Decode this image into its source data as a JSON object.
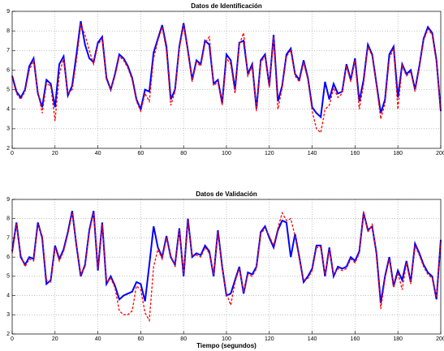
{
  "chart_data": [
    {
      "type": "line",
      "title": "Datos de Identificación",
      "x": [
        0,
        2,
        4,
        6,
        8,
        10,
        12,
        14,
        16,
        18,
        20,
        22,
        24,
        26,
        28,
        30,
        32,
        34,
        36,
        38,
        40,
        42,
        44,
        46,
        48,
        50,
        52,
        54,
        56,
        58,
        60,
        62,
        64,
        66,
        68,
        70,
        72,
        74,
        76,
        78,
        80,
        82,
        84,
        86,
        88,
        90,
        92,
        94,
        96,
        98,
        100,
        102,
        104,
        106,
        108,
        110,
        112,
        114,
        116,
        118,
        120,
        122,
        124,
        126,
        128,
        130,
        132,
        134,
        136,
        138,
        140,
        142,
        144,
        146,
        148,
        150,
        152,
        154,
        156,
        158,
        160,
        162,
        164,
        166,
        168,
        170,
        172,
        174,
        176,
        178,
        180,
        182,
        184,
        186,
        188,
        190,
        192,
        194,
        196,
        198,
        200
      ],
      "series": [
        {
          "color": "#0000ff",
          "style": "solid",
          "values": [
            5.7,
            4.9,
            4.6,
            5.0,
            6.2,
            6.6,
            4.8,
            4.1,
            5.5,
            5.3,
            4.1,
            6.3,
            6.7,
            4.7,
            5.2,
            6.8,
            8.5,
            7.3,
            6.6,
            6.4,
            7.4,
            7.7,
            5.6,
            5.0,
            5.8,
            6.8,
            6.6,
            6.2,
            5.6,
            4.5,
            4.0,
            5.0,
            4.9,
            6.9,
            7.6,
            8.3,
            7.2,
            4.5,
            5.0,
            7.2,
            8.4,
            7.0,
            5.5,
            6.5,
            6.3,
            7.5,
            7.3,
            5.3,
            5.5,
            4.3,
            6.8,
            6.5,
            5.0,
            7.4,
            7.5,
            5.8,
            6.3,
            4.0,
            6.5,
            6.8,
            5.2,
            7.8,
            4.4,
            5.2,
            6.8,
            7.1,
            5.8,
            5.5,
            6.5,
            5.6,
            4.1,
            3.8,
            3.6,
            5.4,
            4.5,
            5.3,
            4.8,
            4.9,
            6.3,
            5.5,
            6.6,
            4.4,
            5.5,
            7.3,
            6.8,
            5.3,
            3.8,
            4.5,
            6.8,
            7.2,
            4.6,
            6.3,
            5.8,
            6.0,
            5.0,
            6.2,
            7.6,
            8.2,
            7.9,
            6.5,
            3.9
          ]
        },
        {
          "color": "#ff0000",
          "style": "dashed",
          "values": [
            5.6,
            4.8,
            4.5,
            4.9,
            6.0,
            6.5,
            4.9,
            3.8,
            5.3,
            5.2,
            3.4,
            5.8,
            6.6,
            4.8,
            5.0,
            6.5,
            8.3,
            7.8,
            7.0,
            6.3,
            7.3,
            7.6,
            5.5,
            5.0,
            5.7,
            6.7,
            6.5,
            6.1,
            5.5,
            4.4,
            3.9,
            4.8,
            4.4,
            6.6,
            7.5,
            8.2,
            7.0,
            4.2,
            4.9,
            7.1,
            8.3,
            6.9,
            5.4,
            6.4,
            6.2,
            7.4,
            7.7,
            5.2,
            5.4,
            4.2,
            6.6,
            6.3,
            4.8,
            7.3,
            7.9,
            5.7,
            6.2,
            3.9,
            6.4,
            6.7,
            5.1,
            7.7,
            4.0,
            5.1,
            6.7,
            7.0,
            5.7,
            5.4,
            6.4,
            5.5,
            3.9,
            3.0,
            2.8,
            4.0,
            4.2,
            5.1,
            4.6,
            4.8,
            6.2,
            5.4,
            6.5,
            4.0,
            5.3,
            7.2,
            6.7,
            5.2,
            3.5,
            4.3,
            6.6,
            7.1,
            4.0,
            6.2,
            5.7,
            5.9,
            4.9,
            6.1,
            7.5,
            8.1,
            7.8,
            6.4,
            3.9
          ]
        }
      ],
      "xlim": [
        0,
        200
      ],
      "ylim": [
        2,
        9
      ],
      "xticks": [
        0,
        20,
        40,
        60,
        80,
        100,
        120,
        140,
        160,
        180,
        200
      ],
      "yticks": [
        2,
        3,
        4,
        5,
        6,
        7,
        8,
        9
      ],
      "grid": true
    },
    {
      "type": "line",
      "title": "Datos de Validación",
      "xlabel": "Tiempo (segundos)",
      "x": [
        0,
        2,
        4,
        6,
        8,
        10,
        12,
        14,
        16,
        18,
        20,
        22,
        24,
        26,
        28,
        30,
        32,
        34,
        36,
        38,
        40,
        42,
        44,
        46,
        48,
        50,
        52,
        54,
        56,
        58,
        60,
        62,
        64,
        66,
        68,
        70,
        72,
        74,
        76,
        78,
        80,
        82,
        84,
        86,
        88,
        90,
        92,
        94,
        96,
        98,
        100,
        102,
        104,
        106,
        108,
        110,
        112,
        114,
        116,
        118,
        120,
        122,
        124,
        126,
        128,
        130,
        132,
        134,
        136,
        138,
        140,
        142,
        144,
        146,
        148,
        150,
        152,
        154,
        156,
        158,
        160,
        162,
        164,
        166,
        168,
        170,
        172,
        174,
        176,
        178,
        180,
        182,
        184,
        186,
        188,
        190,
        192,
        194,
        196,
        198,
        200
      ],
      "series": [
        {
          "color": "#0000ff",
          "style": "solid",
          "values": [
            6.3,
            7.8,
            6.0,
            5.6,
            6.0,
            5.9,
            7.8,
            7.0,
            4.6,
            4.8,
            6.6,
            5.9,
            6.4,
            7.3,
            8.4,
            6.6,
            5.0,
            5.6,
            7.4,
            8.4,
            5.3,
            7.8,
            4.6,
            5.0,
            4.5,
            3.8,
            4.0,
            4.1,
            4.2,
            4.7,
            4.6,
            3.7,
            5.6,
            7.6,
            6.5,
            6.0,
            7.1,
            6.0,
            5.6,
            7.5,
            5.0,
            8.0,
            6.0,
            6.2,
            6.1,
            6.6,
            6.3,
            5.0,
            7.4,
            5.5,
            4.0,
            4.1,
            4.8,
            5.5,
            4.1,
            5.2,
            5.1,
            5.5,
            7.3,
            7.6,
            7.0,
            6.5,
            7.4,
            7.9,
            7.8,
            6.0,
            7.2,
            6.0,
            4.7,
            5.0,
            5.4,
            6.6,
            6.6,
            5.0,
            6.5,
            5.0,
            5.5,
            5.4,
            5.5,
            6.0,
            5.8,
            6.3,
            8.3,
            7.4,
            7.6,
            6.2,
            3.6,
            5.0,
            6.0,
            4.5,
            5.3,
            4.8,
            5.8,
            4.7,
            6.7,
            6.2,
            5.6,
            5.2,
            5.0,
            3.8,
            6.9
          ]
        },
        {
          "color": "#ff0000",
          "style": "dashed",
          "values": [
            6.2,
            7.7,
            6.1,
            5.5,
            5.9,
            5.8,
            7.7,
            7.1,
            4.8,
            4.7,
            6.5,
            5.8,
            6.3,
            7.2,
            8.3,
            6.7,
            5.1,
            5.5,
            7.3,
            8.3,
            5.4,
            7.7,
            4.7,
            4.9,
            4.4,
            3.2,
            3.0,
            3.0,
            3.2,
            4.5,
            4.3,
            3.1,
            2.7,
            5.5,
            6.4,
            5.9,
            7.0,
            6.1,
            5.5,
            7.4,
            5.1,
            7.9,
            6.1,
            6.1,
            6.0,
            6.5,
            6.2,
            5.1,
            7.3,
            5.4,
            4.1,
            3.5,
            4.7,
            5.4,
            4.2,
            5.1,
            5.0,
            5.4,
            7.2,
            7.5,
            7.1,
            6.6,
            7.5,
            8.3,
            7.9,
            8.0,
            7.1,
            5.9,
            4.8,
            4.9,
            5.3,
            6.5,
            6.5,
            5.1,
            6.4,
            5.1,
            5.4,
            5.3,
            5.4,
            5.9,
            5.7,
            6.2,
            8.4,
            7.3,
            7.7,
            6.1,
            3.3,
            4.9,
            5.9,
            4.4,
            5.2,
            4.3,
            5.7,
            4.6,
            6.6,
            6.1,
            5.5,
            5.1,
            4.9,
            3.9,
            6.8
          ]
        }
      ],
      "xlim": [
        0,
        200
      ],
      "ylim": [
        2,
        9
      ],
      "xticks": [
        0,
        20,
        40,
        60,
        80,
        100,
        120,
        140,
        160,
        180,
        200
      ],
      "yticks": [
        2,
        3,
        4,
        5,
        6,
        7,
        8,
        9
      ],
      "grid": true
    }
  ]
}
